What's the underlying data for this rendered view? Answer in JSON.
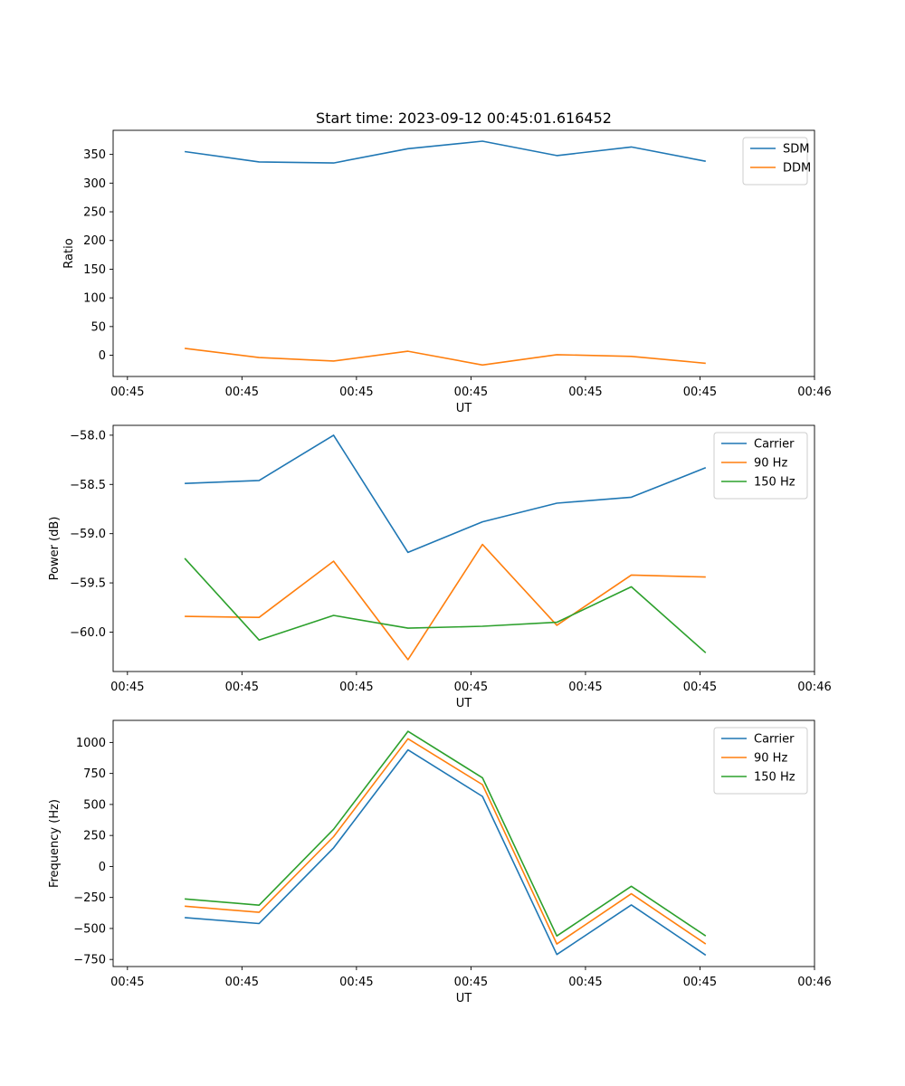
{
  "figure": {
    "title": "Start time: 2023-09-12 00:45:01.616452"
  },
  "chart_data": [
    {
      "type": "line",
      "title": "Start time: 2023-09-12 00:45:01.616452",
      "xlabel": "UT",
      "ylabel": "Ratio",
      "x_tick_labels": [
        "00:45",
        "00:45",
        "00:45",
        "00:45",
        "00:45",
        "00:45",
        "00:46"
      ],
      "x_tick_positions": [
        0,
        1,
        2,
        3,
        4,
        5,
        6
      ],
      "xlim": [
        -0.125,
        6.0
      ],
      "x": [
        0.5,
        1.15,
        1.8,
        2.45,
        3.1,
        3.75,
        4.4,
        5.05
      ],
      "yticks": [
        0,
        50,
        100,
        150,
        200,
        250,
        300,
        350
      ],
      "ylim": [
        -37,
        392
      ],
      "legend_position": "upper right",
      "series": [
        {
          "name": "SDM",
          "color": "#1f77b4",
          "values": [
            355,
            337,
            335,
            360,
            373,
            348,
            363,
            338
          ]
        },
        {
          "name": "DDM",
          "color": "#ff7f0e",
          "values": [
            12,
            -4,
            -10,
            7,
            -17,
            1,
            -2,
            -14
          ]
        }
      ]
    },
    {
      "type": "line",
      "xlabel": "UT",
      "ylabel": "Power (dB)",
      "x_tick_labels": [
        "00:45",
        "00:45",
        "00:45",
        "00:45",
        "00:45",
        "00:45",
        "00:46"
      ],
      "x_tick_positions": [
        0,
        1,
        2,
        3,
        4,
        5,
        6
      ],
      "xlim": [
        -0.125,
        6.0
      ],
      "x": [
        0.5,
        1.15,
        1.8,
        2.45,
        3.1,
        3.75,
        4.4,
        5.05
      ],
      "yticks": [
        -60.0,
        -59.5,
        -59.0,
        -58.5,
        -58.0
      ],
      "ytick_labels": [
        "−60.0",
        "−59.5",
        "−59.0",
        "−58.5",
        "−58.0"
      ],
      "ylim": [
        -60.4,
        -57.9
      ],
      "legend_position": "upper right",
      "series": [
        {
          "name": "Carrier",
          "color": "#1f77b4",
          "values": [
            -58.49,
            -58.46,
            -58.0,
            -59.19,
            -58.88,
            -58.69,
            -58.63,
            -58.33
          ]
        },
        {
          "name": "90 Hz",
          "color": "#ff7f0e",
          "values": [
            -59.84,
            -59.85,
            -59.28,
            -60.28,
            -59.11,
            -59.93,
            -59.42,
            -59.44
          ]
        },
        {
          "name": "150 Hz",
          "color": "#2ca02c",
          "values": [
            -59.25,
            -60.08,
            -59.83,
            -59.96,
            -59.94,
            -59.9,
            -59.54,
            -60.21
          ]
        }
      ]
    },
    {
      "type": "line",
      "xlabel": "UT",
      "ylabel": "Frequency (Hz)",
      "x_tick_labels": [
        "00:45",
        "00:45",
        "00:45",
        "00:45",
        "00:45",
        "00:45",
        "00:46"
      ],
      "x_tick_positions": [
        0,
        1,
        2,
        3,
        4,
        5,
        6
      ],
      "xlim": [
        -0.125,
        6.0
      ],
      "x": [
        0.5,
        1.15,
        1.8,
        2.45,
        3.1,
        3.75,
        4.4,
        5.05
      ],
      "yticks": [
        -750,
        -500,
        -250,
        0,
        250,
        500,
        750,
        1000
      ],
      "ytick_labels": [
        "−750",
        "−500",
        "−250",
        "0",
        "250",
        "500",
        "750",
        "1000"
      ],
      "ylim": [
        -807,
        1178
      ],
      "legend_position": "upper right",
      "series": [
        {
          "name": "Carrier",
          "color": "#1f77b4",
          "values": [
            -412,
            -460,
            150,
            940,
            565,
            -710,
            -310,
            -715
          ]
        },
        {
          "name": "90 Hz",
          "color": "#ff7f0e",
          "values": [
            -320,
            -370,
            240,
            1030,
            660,
            -625,
            -220,
            -625
          ]
        },
        {
          "name": "150 Hz",
          "color": "#2ca02c",
          "values": [
            -262,
            -312,
            300,
            1090,
            715,
            -560,
            -160,
            -560
          ]
        }
      ]
    }
  ]
}
